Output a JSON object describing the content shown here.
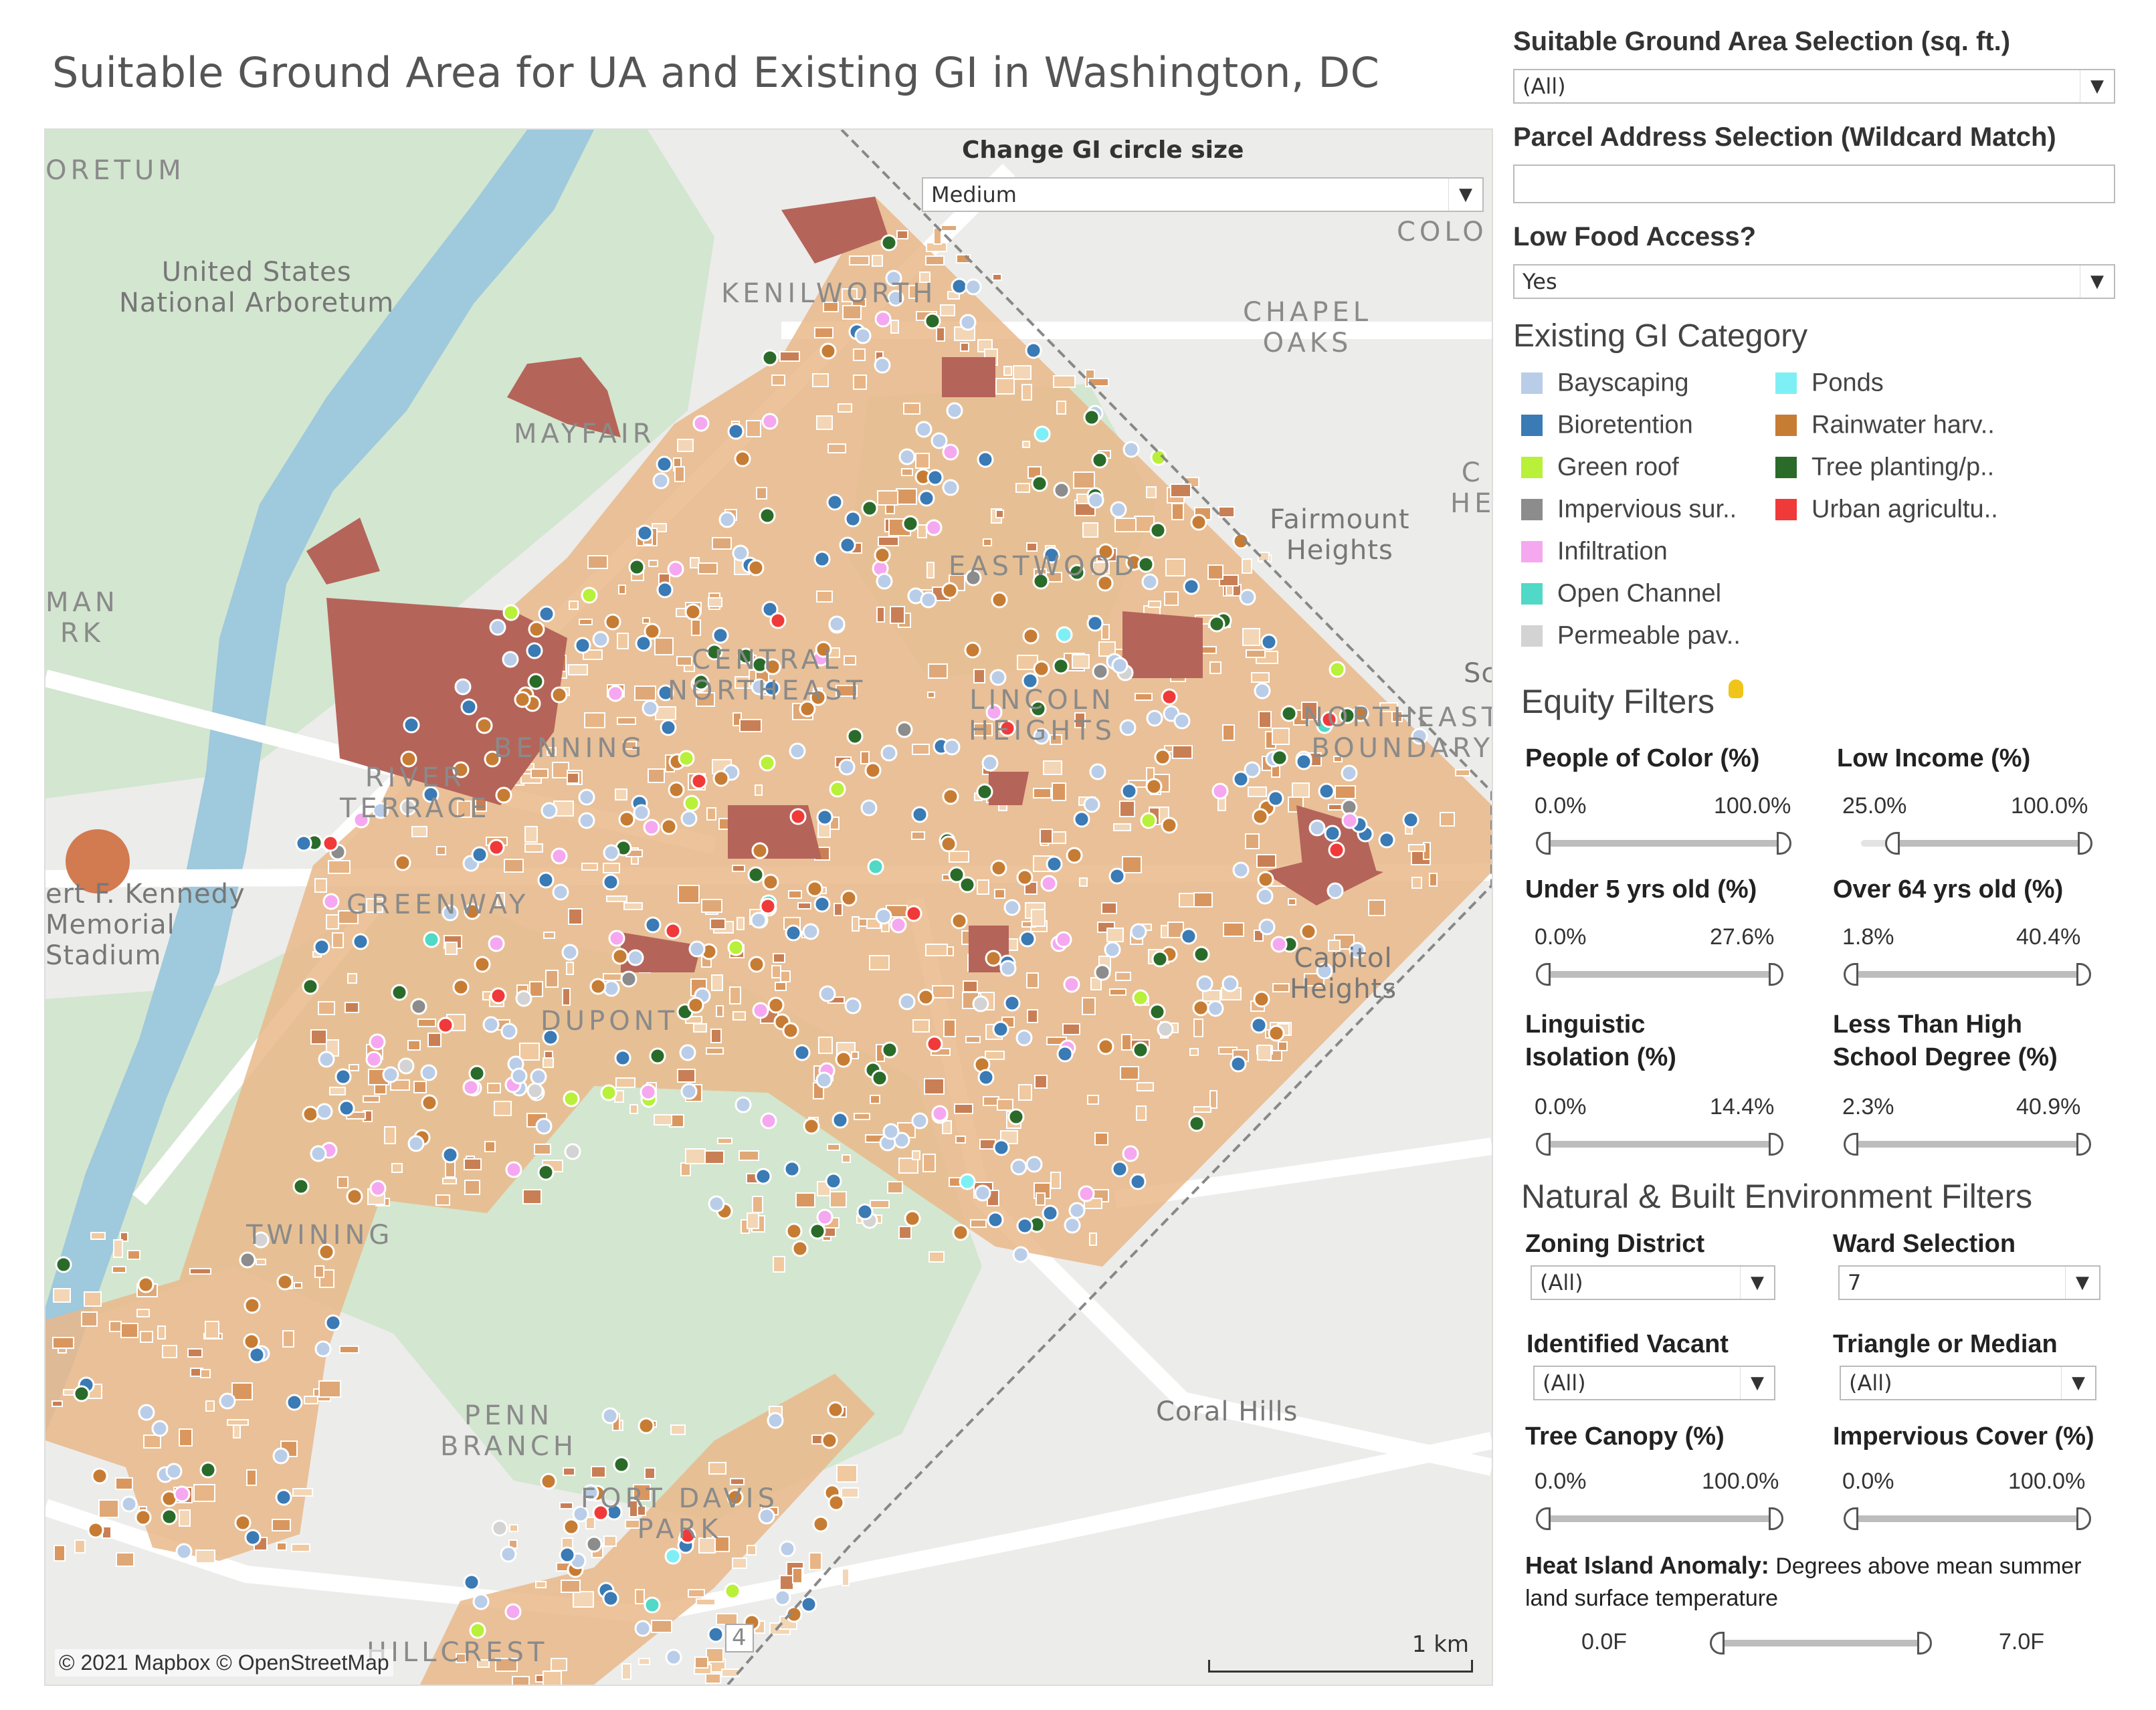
{
  "title": "Suitable Ground Area for UA and Existing GI in Washington, DC",
  "map": {
    "gi_size_label": "Change GI circle size",
    "gi_size_value": "Medium",
    "attribution": "© 2021 Mapbox © OpenStreetMap",
    "scale_label": "1 km",
    "place_labels": [
      {
        "id": "oretum",
        "text": "ORETUM"
      },
      {
        "id": "arboretum",
        "text": "United States\nNational Arboretum"
      },
      {
        "id": "kenilworth",
        "text": "KENILWORTH"
      },
      {
        "id": "mayfair",
        "text": "MAYFAIR"
      },
      {
        "id": "chapel-oaks",
        "text": "CHAPEL\nOAKS"
      },
      {
        "id": "fairmount",
        "text": "Fairmount\nHeights"
      },
      {
        "id": "man",
        "text": "MAN\nRK"
      },
      {
        "id": "central-ne",
        "text": "CENTRAL\nNORTHEAST"
      },
      {
        "id": "eastwood",
        "text": "EASTWOOD"
      },
      {
        "id": "benning",
        "text": "BENNING"
      },
      {
        "id": "river-terrace",
        "text": "RIVER\nTERRACE"
      },
      {
        "id": "lincoln-heights",
        "text": "LINCOLN\nHEIGHTS"
      },
      {
        "id": "northeast-boundary",
        "text": "NORTHEAST\nBOUNDARY"
      },
      {
        "id": "rfk",
        "text": "ert F. Kennedy\nMemorial\nStadium"
      },
      {
        "id": "greenway",
        "text": "GREENWAY"
      },
      {
        "id": "capitol-heights",
        "text": "Capitol\nHeights"
      },
      {
        "id": "dupont",
        "text": "DUPONT"
      },
      {
        "id": "twining",
        "text": "TWINING"
      },
      {
        "id": "penn-branch",
        "text": "PENN\nBRANCH"
      },
      {
        "id": "coral-hills",
        "text": "Coral Hills"
      },
      {
        "id": "fort-davis",
        "text": "FORT DAVIS\nPARK"
      },
      {
        "id": "hillcrest",
        "text": "HILLCREST"
      },
      {
        "id": "colo",
        "text": "COLO"
      },
      {
        "id": "he",
        "text": "C\nHE"
      },
      {
        "id": "sc",
        "text": "Sc"
      },
      {
        "id": "route4",
        "text": "4"
      }
    ]
  },
  "sidebar": {
    "ground_area_label": "Suitable Ground Area Selection (sq. ft.)",
    "ground_area_value": "(All)",
    "parcel_label": "Parcel Address Selection (Wildcard Match)",
    "parcel_value": "",
    "food_access_label": "Low Food Access?",
    "food_access_value": "Yes",
    "gi_category_title": "Existing GI Category",
    "legend": [
      {
        "label": "Bayscaping",
        "color": "#b9cde8"
      },
      {
        "label": "Bioretention",
        "color": "#3a7ab5"
      },
      {
        "label": "Green roof",
        "color": "#b8f03a"
      },
      {
        "label": "Impervious sur..",
        "color": "#8c8c8c"
      },
      {
        "label": "Infiltration",
        "color": "#f5a8f0"
      },
      {
        "label": "Open Channel",
        "color": "#4fd9c6"
      },
      {
        "label": "Permeable pav..",
        "color": "#d3d3d3"
      },
      {
        "label": "Ponds",
        "color": "#7ef0f5"
      },
      {
        "label": "Rainwater harv..",
        "color": "#c77c34"
      },
      {
        "label": "Tree planting/p..",
        "color": "#2a6b2a"
      },
      {
        "label": "Urban agricultu..",
        "color": "#f03a3a"
      }
    ],
    "equity_title": "Equity Filters",
    "poc_label": "People of Color (%)",
    "poc_min": "0.0%",
    "poc_max": "100.0%",
    "income_label": "Low Income (%)",
    "income_min": "25.0%",
    "income_max": "100.0%",
    "under5_label": "Under 5 yrs old (%)",
    "under5_min": "0.0%",
    "under5_max": "27.6%",
    "over64_label": "Over 64 yrs old (%)",
    "over64_min": "1.8%",
    "over64_max": "40.4%",
    "ling_label": "Linguistic\nIsolation (%)",
    "ling_min": "0.0%",
    "ling_max": "14.4%",
    "school_label": "Less Than High\nSchool Degree (%)",
    "school_min": "2.3%",
    "school_max": "40.9%",
    "env_title": "Natural & Built Environment Filters",
    "zoning_label": "Zoning District",
    "zoning_value": "(All)",
    "ward_label": "Ward Selection",
    "ward_value": "7",
    "vacant_label": "Identified Vacant",
    "vacant_value": "(All)",
    "triangle_label": "Triangle or Median",
    "triangle_value": "(All)",
    "canopy_label": "Tree Canopy (%)",
    "canopy_min": "0.0%",
    "canopy_max": "100.0%",
    "imperv_label": "Impervious Cover (%)",
    "imperv_min": "0.0%",
    "imperv_max": "100.0%",
    "heat_label_bold": "Heat Island Anomaly:",
    "heat_label_rest": " Degrees above mean summer land surface temperature",
    "heat_min": "0.0F",
    "heat_max": "7.0F"
  }
}
